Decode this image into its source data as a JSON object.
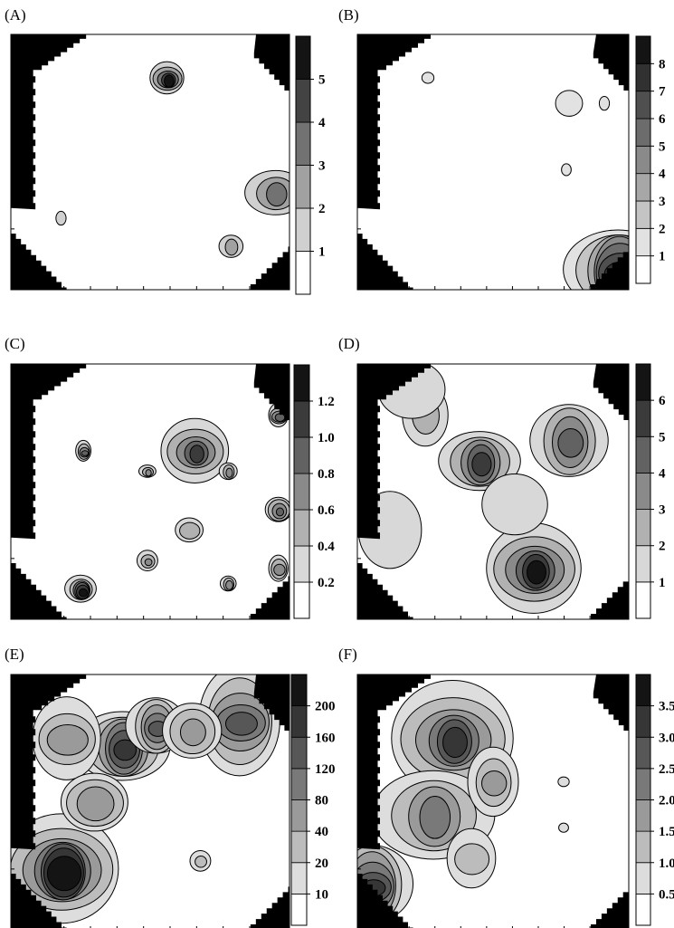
{
  "figure": "Six contour maps with shaded levels and colour bars",
  "chart_data": [
    {
      "panel": "(A)",
      "type": "heatmap",
      "colorbar": {
        "ticks": [
          "1",
          "2",
          "3",
          "4",
          "5"
        ],
        "levels": 6
      },
      "corners": [
        "top-left",
        "top-right",
        "bottom-left",
        "bottom-right"
      ],
      "blobs": [
        {
          "x": 0.56,
          "y": 0.17,
          "r": 0.05,
          "peak": 6
        },
        {
          "x": 0.95,
          "y": 0.62,
          "r": 0.09,
          "peak": 3
        },
        {
          "x": 0.79,
          "y": 0.83,
          "r": 0.04,
          "peak": 2
        },
        {
          "x": 0.18,
          "y": 0.72,
          "r": 0.02,
          "peak": 1
        }
      ]
    },
    {
      "panel": "(B)",
      "type": "heatmap",
      "colorbar": {
        "ticks": [
          "1",
          "2",
          "3",
          "4",
          "5",
          "6",
          "7",
          "8"
        ],
        "levels": 9
      },
      "corners": [
        "top-left",
        "top-right",
        "bottom-left",
        "bottom-right"
      ],
      "blobs": [
        {
          "x": 0.78,
          "y": 0.27,
          "r": 0.04,
          "peak": 1
        },
        {
          "x": 0.96,
          "y": 0.92,
          "r": 0.16,
          "peak": 8
        },
        {
          "x": 0.26,
          "y": 0.17,
          "r": 0.02,
          "peak": 1
        },
        {
          "x": 0.91,
          "y": 0.27,
          "r": 0.02,
          "peak": 1
        },
        {
          "x": 0.77,
          "y": 0.53,
          "r": 0.02,
          "peak": 1
        }
      ]
    },
    {
      "panel": "(C)",
      "type": "heatmap",
      "colorbar": {
        "ticks": [
          "0.2",
          "0.4",
          "0.6",
          "0.8",
          "1.0",
          "1.2"
        ],
        "levels": 7
      },
      "corners": [
        "top-left",
        "top-right",
        "bottom-left",
        "bottom-right"
      ],
      "blobs": [
        {
          "x": 0.66,
          "y": 0.34,
          "r": 0.1,
          "peak": 5
        },
        {
          "x": 0.49,
          "y": 0.42,
          "r": 0.025,
          "peak": 3
        },
        {
          "x": 0.78,
          "y": 0.42,
          "r": 0.03,
          "peak": 3
        },
        {
          "x": 0.26,
          "y": 0.34,
          "r": 0.03,
          "peak": 4
        },
        {
          "x": 0.96,
          "y": 0.2,
          "r": 0.04,
          "peak": 4
        },
        {
          "x": 0.64,
          "y": 0.65,
          "r": 0.05,
          "peak": 2
        },
        {
          "x": 0.96,
          "y": 0.57,
          "r": 0.04,
          "peak": 4
        },
        {
          "x": 0.49,
          "y": 0.77,
          "r": 0.03,
          "peak": 3
        },
        {
          "x": 0.25,
          "y": 0.88,
          "r": 0.05,
          "peak": 6
        },
        {
          "x": 0.78,
          "y": 0.86,
          "r": 0.03,
          "peak": 3
        },
        {
          "x": 0.96,
          "y": 0.8,
          "r": 0.04,
          "peak": 3
        }
      ]
    },
    {
      "panel": "(D)",
      "type": "heatmap",
      "colorbar": {
        "ticks": [
          "1",
          "2",
          "3",
          "4",
          "5",
          "6"
        ],
        "levels": 7
      },
      "corners": [
        "top-left",
        "top-right",
        "bottom-left",
        "bottom-right"
      ],
      "blobs": [
        {
          "x": 0.65,
          "y": 0.8,
          "r": 0.14,
          "peak": 6
        },
        {
          "x": 0.45,
          "y": 0.38,
          "r": 0.12,
          "peak": 5
        },
        {
          "x": 0.78,
          "y": 0.3,
          "r": 0.13,
          "peak": 4
        },
        {
          "x": 0.25,
          "y": 0.2,
          "r": 0.09,
          "peak": 2
        },
        {
          "x": 0.12,
          "y": 0.65,
          "r": 0.13,
          "peak": 1
        },
        {
          "x": 0.2,
          "y": 0.1,
          "r": 0.12,
          "peak": 1
        },
        {
          "x": 0.58,
          "y": 0.55,
          "r": 0.1,
          "peak": 1
        }
      ]
    },
    {
      "panel": "(E)",
      "type": "heatmap",
      "colorbar": {
        "ticks": [
          "10",
          "20",
          "40",
          "80",
          "120",
          "160",
          "200"
        ],
        "levels": 8
      },
      "corners": [
        "top-left",
        "top-right",
        "bottom-left",
        "bottom-right"
      ],
      "blobs": [
        {
          "x": 0.18,
          "y": 0.76,
          "r": 0.17,
          "peak": 8
        },
        {
          "x": 0.4,
          "y": 0.28,
          "r": 0.14,
          "peak": 6
        },
        {
          "x": 0.52,
          "y": 0.2,
          "r": 0.1,
          "peak": 5
        },
        {
          "x": 0.82,
          "y": 0.18,
          "r": 0.16,
          "peak": 5
        },
        {
          "x": 0.2,
          "y": 0.25,
          "r": 0.14,
          "peak": 3
        },
        {
          "x": 0.3,
          "y": 0.5,
          "r": 0.12,
          "peak": 3
        },
        {
          "x": 0.65,
          "y": 0.22,
          "r": 0.09,
          "peak": 3
        },
        {
          "x": 0.68,
          "y": 0.73,
          "r": 0.03,
          "peak": 2
        }
      ]
    },
    {
      "panel": "(F)",
      "type": "heatmap",
      "colorbar": {
        "ticks": [
          "0.5",
          "1.0",
          "1.5",
          "2.0",
          "2.5",
          "3.0",
          "3.5"
        ],
        "levels": 8
      },
      "corners": [
        "top-left",
        "top-right",
        "bottom-left",
        "bottom-right"
      ],
      "blobs": [
        {
          "x": 0.35,
          "y": 0.25,
          "r": 0.18,
          "peak": 6
        },
        {
          "x": 0.28,
          "y": 0.55,
          "r": 0.18,
          "peak": 4
        },
        {
          "x": 0.05,
          "y": 0.82,
          "r": 0.14,
          "peak": 6
        },
        {
          "x": 0.5,
          "y": 0.42,
          "r": 0.1,
          "peak": 3
        },
        {
          "x": 0.42,
          "y": 0.72,
          "r": 0.1,
          "peak": 2
        },
        {
          "x": 0.76,
          "y": 0.42,
          "r": 0.02,
          "peak": 1
        },
        {
          "x": 0.76,
          "y": 0.6,
          "r": 0.015,
          "peak": 1
        }
      ]
    }
  ]
}
